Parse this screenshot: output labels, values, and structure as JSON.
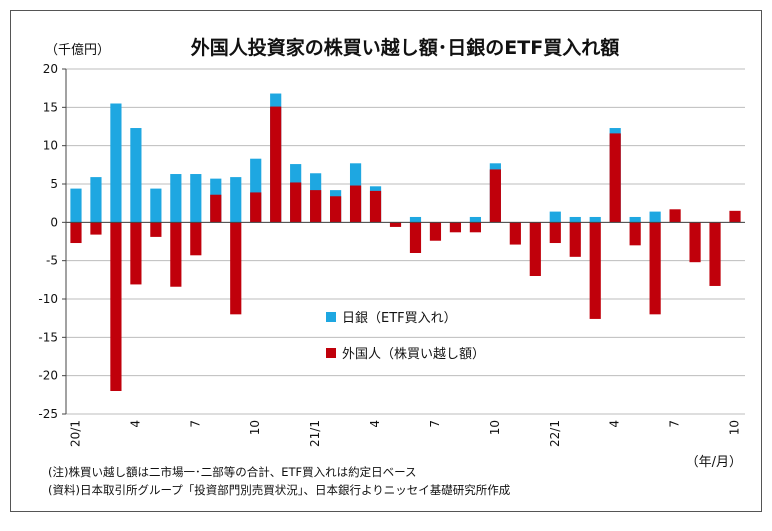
{
  "chart_data": {
    "type": "bar",
    "title": "外国人投資家の株買い越し額･日銀のETF買入れ額",
    "unit_label": "（千億円）",
    "period_label": "（年/月）",
    "ylim": [
      -25,
      20
    ],
    "yticks": [
      20,
      15,
      10,
      5,
      0,
      -5,
      -10,
      -15,
      -20,
      -25
    ],
    "grid": true,
    "x_tick_labels": [
      {
        "index": 0,
        "label": "20/1"
      },
      {
        "index": 3,
        "label": "4"
      },
      {
        "index": 6,
        "label": "7"
      },
      {
        "index": 9,
        "label": "10"
      },
      {
        "index": 12,
        "label": "21/1"
      },
      {
        "index": 15,
        "label": "4"
      },
      {
        "index": 18,
        "label": "7"
      },
      {
        "index": 21,
        "label": "10"
      },
      {
        "index": 24,
        "label": "22/1"
      },
      {
        "index": 27,
        "label": "4"
      },
      {
        "index": 30,
        "label": "7"
      },
      {
        "index": 33,
        "label": "10"
      }
    ],
    "x_count": 34,
    "legend_position": "center",
    "series": [
      {
        "name": "日銀（ETF買入れ）",
        "color": "#1ea7e1",
        "values": [
          4.4,
          5.9,
          15.5,
          12.3,
          4.4,
          6.3,
          6.3,
          5.7,
          5.9,
          8.3,
          16.8,
          7.6,
          6.4,
          4.2,
          7.7,
          4.7,
          0,
          0.7,
          0,
          0,
          0.7,
          7.7,
          0,
          0,
          1.4,
          0.7,
          0.7,
          12.3,
          0.7,
          1.4,
          0,
          0,
          0,
          0
        ]
      },
      {
        "name": "外国人（株買い越し額）",
        "color": "#c0000b",
        "values": [
          -2.7,
          -1.6,
          -22,
          -8.1,
          -1.9,
          -8.4,
          -4.3,
          3.6,
          -12,
          3.9,
          15.1,
          5.2,
          4.2,
          3.4,
          4.8,
          4.1,
          -0.6,
          -4,
          -2.4,
          -1.3,
          -1.3,
          6.9,
          -2.9,
          -7,
          -2.7,
          -4.5,
          -12.6,
          11.6,
          -3,
          -12,
          1.7,
          -5.2,
          -8.3,
          1.5
        ]
      }
    ]
  },
  "notes": [
    "(注)株買い越し額は二市場一･二部等の合計、ETF買入れは約定日ベース",
    "(資料)日本取引所グループ「投資部門別売買状況」、日本銀行よりニッセイ基礎研究所作成"
  ]
}
